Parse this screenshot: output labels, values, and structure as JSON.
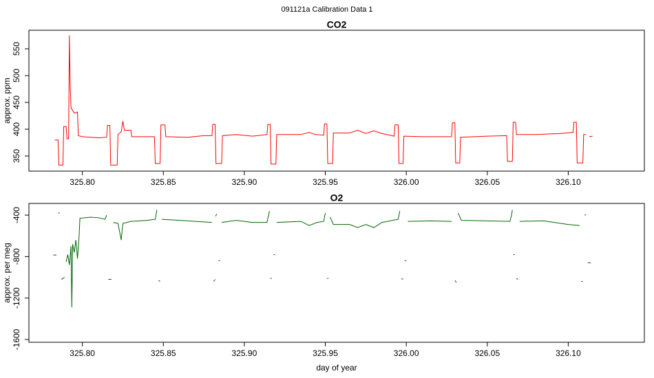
{
  "title": "091121a   Calibration Data 1",
  "chart_data": [
    {
      "type": "line",
      "title": "CO2",
      "ylabel": "approx. ppm",
      "xlim": [
        325.767,
        326.147
      ],
      "ylim": [
        321.8,
        584.6
      ],
      "xticks": [
        {
          "value": 325.8,
          "label": "325.80"
        },
        {
          "value": 325.85,
          "label": "325.85"
        },
        {
          "value": 325.9,
          "label": "325.90"
        },
        {
          "value": 325.95,
          "label": "325.95"
        },
        {
          "value": 326.0,
          "label": "326.00"
        },
        {
          "value": 326.05,
          "label": "326.05"
        },
        {
          "value": 326.1,
          "label": "326.10"
        }
      ],
      "yticks": [
        350,
        400,
        450,
        500,
        550
      ],
      "series": [
        {
          "name": "CO2",
          "color": "#ff0000",
          "x": [
            325.783,
            325.785,
            325.7855,
            325.788,
            325.7885,
            325.79,
            325.7905,
            325.7915,
            325.792,
            325.7925,
            325.793,
            325.795,
            325.797,
            325.7975,
            325.8,
            325.81,
            325.815,
            325.8155,
            325.817,
            325.8175,
            325.8215,
            325.822,
            325.824,
            325.825,
            325.826,
            325.83,
            325.8305,
            325.84,
            325.8445,
            325.845,
            325.848,
            325.8485,
            325.851,
            325.8515,
            325.865,
            325.875,
            325.88,
            325.8805,
            325.882,
            325.8825,
            325.886,
            325.8865,
            325.895,
            325.905,
            325.914,
            325.9145,
            325.916,
            325.9165,
            325.9195,
            325.92,
            325.935,
            325.94,
            325.944,
            325.949,
            325.9495,
            325.951,
            325.9515,
            325.9545,
            325.955,
            325.965,
            325.97,
            325.975,
            325.98,
            325.985,
            325.9925,
            325.993,
            325.995,
            325.9955,
            325.998,
            325.9985,
            326.01,
            326.02,
            326.028,
            326.0285,
            326.03,
            326.0305,
            326.033,
            326.0335,
            326.05,
            326.062,
            326.0625,
            326.0655,
            326.066,
            326.0675,
            326.068,
            326.08,
            326.095,
            326.103,
            326.1035,
            326.105,
            326.1055,
            326.109,
            326.1095,
            326.111,
            null,
            326.113,
            326.115
          ],
          "values": [
            380,
            380,
            333,
            333,
            405,
            405,
            382,
            382,
            575,
            480,
            440,
            430,
            432,
            388,
            386,
            384,
            385,
            407,
            407,
            333,
            333,
            390,
            395,
            415,
            398,
            398,
            386,
            386,
            386,
            336,
            336,
            408,
            408,
            386,
            385,
            388,
            388,
            409,
            409,
            336,
            336,
            388,
            390,
            387,
            390,
            409,
            409,
            335,
            335,
            390,
            390,
            394,
            390,
            389,
            410,
            410,
            336,
            336,
            393,
            393,
            398,
            392,
            397,
            392,
            387,
            408,
            408,
            336,
            336,
            387,
            386,
            386,
            386,
            412,
            412,
            337,
            337,
            385,
            387,
            388,
            340,
            340,
            413,
            413,
            390,
            390,
            392,
            394,
            413,
            413,
            337,
            337,
            390,
            390,
            null,
            386,
            387
          ]
        }
      ]
    },
    {
      "type": "line",
      "title": "O2",
      "ylabel": "approx. per meg",
      "xlabel": "day of year",
      "xlim": [
        325.767,
        326.147
      ],
      "ylim": [
        -1626.5,
        -287
      ],
      "xticks": [
        {
          "value": 325.8,
          "label": "325.80"
        },
        {
          "value": 325.85,
          "label": "325.85"
        },
        {
          "value": 325.9,
          "label": "325.90"
        },
        {
          "value": 325.95,
          "label": "325.95"
        },
        {
          "value": 326.0,
          "label": "326.00"
        },
        {
          "value": 326.05,
          "label": "326.05"
        },
        {
          "value": 326.1,
          "label": "326.10"
        }
      ],
      "yticks": [
        -400,
        -800,
        -1200,
        -1600
      ],
      "series": [
        {
          "name": "O2",
          "color": "#006400",
          "x": [
            325.782,
            325.784,
            null,
            325.785,
            325.786,
            null,
            325.787,
            325.789,
            null,
            325.79,
            325.791,
            325.792,
            325.793,
            325.7935,
            325.794,
            325.795,
            325.796,
            325.797,
            325.798,
            325.7985,
            325.805,
            325.81,
            325.814,
            325.815,
            null,
            325.816,
            325.818,
            null,
            325.819,
            325.822,
            325.823,
            325.824,
            325.825,
            325.83,
            325.84,
            325.845,
            325.846,
            null,
            325.847,
            325.848,
            null,
            325.849,
            325.86,
            325.87,
            325.88,
            null,
            325.881,
            325.882,
            null,
            325.8822,
            325.883,
            null,
            325.884,
            325.885,
            null,
            325.886,
            325.895,
            325.905,
            325.914,
            325.915,
            325.9155,
            null,
            325.916,
            325.917,
            null,
            325.918,
            325.919,
            null,
            325.92,
            325.935,
            325.94,
            325.945,
            325.949,
            325.95,
            null,
            325.951,
            325.952,
            null,
            325.953,
            325.955,
            325.965,
            325.97,
            325.975,
            325.98,
            325.985,
            325.995,
            325.996,
            null,
            325.997,
            325.998,
            null,
            325.999,
            326.0,
            null,
            326.001,
            326.015,
            326.028,
            null,
            326.03,
            326.031,
            null,
            326.032,
            326.034,
            326.05,
            326.064,
            326.065,
            326.0655,
            null,
            326.066,
            326.067,
            null,
            326.068,
            326.069,
            null,
            326.07,
            326.085,
            326.1,
            326.107,
            null,
            326.108,
            326.109,
            null,
            326.11,
            326.111,
            null,
            326.112,
            326.114
          ],
          "values": [
            -785,
            -785,
            null,
            -380,
            -380,
            null,
            -1020,
            -1000,
            null,
            -850,
            -780,
            -880,
            -700,
            -1290,
            -680,
            -760,
            -640,
            -820,
            -600,
            -430,
            -420,
            -425,
            -440,
            -400,
            null,
            -1020,
            -1020,
            null,
            -470,
            -480,
            -560,
            -640,
            -480,
            -460,
            -450,
            -440,
            -350,
            null,
            -1030,
            -1040,
            null,
            -440,
            -450,
            -460,
            -470,
            null,
            -1040,
            -1020,
            null,
            -410,
            -390,
            null,
            -840,
            -840,
            null,
            -470,
            -450,
            -470,
            -470,
            -400,
            -360,
            null,
            -1010,
            -1010,
            null,
            -780,
            -780,
            null,
            -470,
            -460,
            -500,
            -470,
            -460,
            -380,
            null,
            -1010,
            -1010,
            null,
            -420,
            -490,
            -490,
            -520,
            -490,
            -520,
            -470,
            -440,
            -360,
            null,
            -1010,
            -1020,
            null,
            -840,
            -840,
            null,
            -460,
            -455,
            -460,
            null,
            -1030,
            -1050,
            null,
            -380,
            -450,
            -455,
            -460,
            -400,
            -350,
            null,
            -780,
            -780,
            null,
            -1010,
            -1020,
            null,
            -460,
            -455,
            -490,
            -500,
            null,
            -1040,
            -1040,
            null,
            -400,
            -395,
            null,
            -860,
            -860
          ]
        }
      ]
    }
  ]
}
